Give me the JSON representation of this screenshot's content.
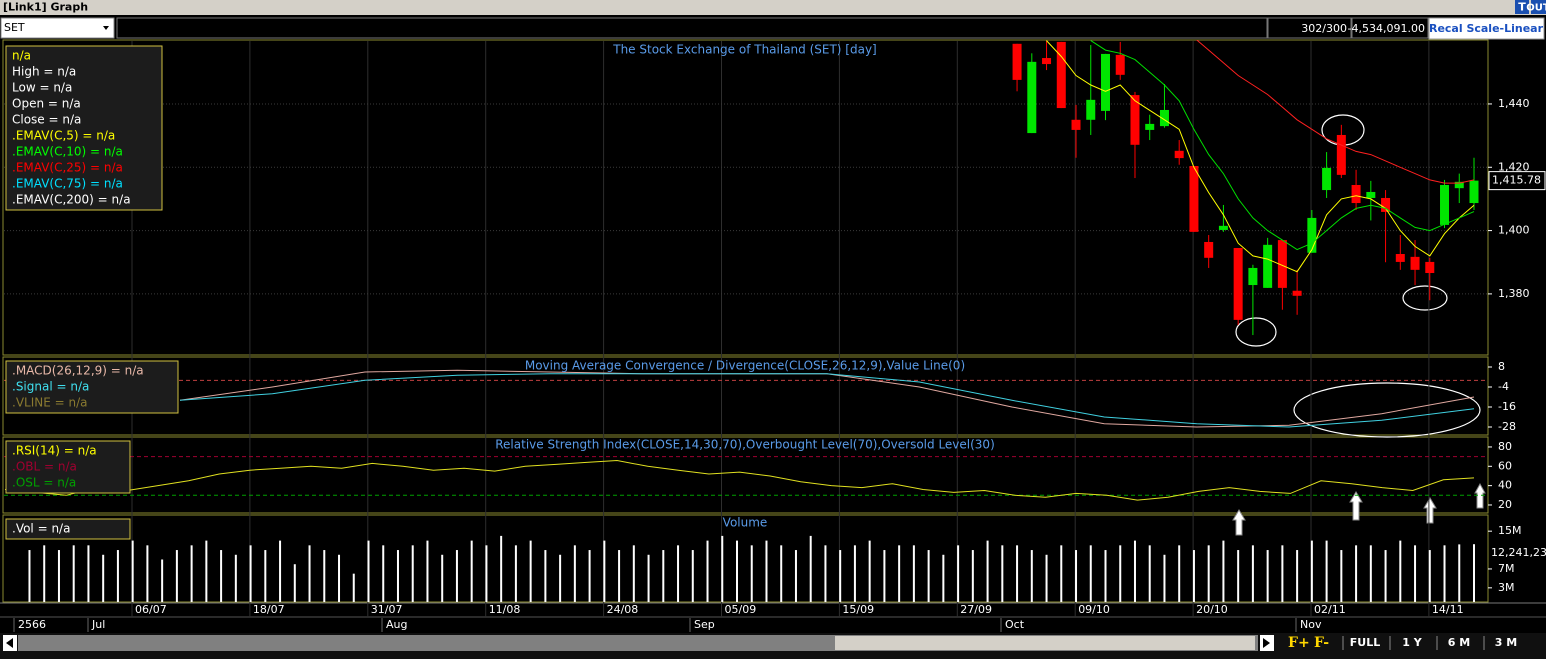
{
  "title_bar": {
    "title": "[Link1] Graph",
    "buttons": [
      "T",
      "OUT"
    ]
  },
  "toolbar": {
    "symbol": "SET",
    "count": "302/300",
    "value": "-4,534,091.00",
    "button": "Recal Scale-Linear"
  },
  "price_panel": {
    "title": "The Stock Exchange of Thailand (SET) [day]",
    "legend": [
      {
        "text": "n/a",
        "color": "#ffff00"
      },
      {
        "text": "High  = n/a",
        "color": "#ffffff"
      },
      {
        "text": "Low  = n/a",
        "color": "#ffffff"
      },
      {
        "text": "Open  = n/a",
        "color": "#ffffff"
      },
      {
        "text": "Close  = n/a",
        "color": "#ffffff"
      },
      {
        "text": ".EMAV(C,5)   = n/a",
        "color": "#ffff00"
      },
      {
        "text": ".EMAV(C,10)   = n/a",
        "color": "#00ff00"
      },
      {
        "text": ".EMAV(C,25)   = n/a",
        "color": "#ff0000"
      },
      {
        "text": ".EMAV(C,75)   = n/a",
        "color": "#00e0ff"
      },
      {
        "text": ".EMAV(C,200)   = n/a",
        "color": "#ffffff"
      }
    ],
    "ylim": [
      1360.7,
      1460.2
    ],
    "yticks": [
      {
        "value": 1440,
        "label": "1,440"
      },
      {
        "value": 1420,
        "label": "1,420"
      },
      {
        "value": 1400,
        "label": "1,400"
      },
      {
        "value": 1380,
        "label": "1,380"
      }
    ],
    "last": {
      "value": 1415.78,
      "label": "1,415.78"
    },
    "candles": {
      "up_color": "#00e600",
      "down_color": "#ff0000",
      "open": [
        1459,
        1430.8,
        1454.5,
        1459.6,
        1435,
        1435,
        1437.8,
        1455.5,
        1442.8,
        1431.8,
        1433,
        1425.2,
        1420.4,
        1396.4,
        1400.2,
        1394.5,
        1382.8,
        1381.9,
        1397,
        1381,
        1393,
        1412.8,
        1430.2,
        1414.4,
        1410.3,
        1410.3,
        1392.6,
        1391.7,
        1390.1,
        1401.8,
        1413.4,
        1408.7
      ],
      "high": [
        1459,
        1456,
        1460,
        1459.6,
        1439.7,
        1458.6,
        1455.8,
        1459.6,
        1443.8,
        1436.6,
        1446.3,
        1428.6,
        1420.4,
        1398.6,
        1408.1,
        1394.5,
        1389.2,
        1397.7,
        1397,
        1387.6,
        1406.5,
        1424.8,
        1433.4,
        1419.2,
        1415.7,
        1412.8,
        1398.6,
        1397,
        1391.4,
        1416,
        1418,
        1423
      ],
      "low": [
        1444,
        1430.8,
        1450.7,
        1438.7,
        1423,
        1430.2,
        1434.9,
        1447.6,
        1416.6,
        1428.6,
        1432.5,
        1420.8,
        1399.6,
        1388.2,
        1399.6,
        1370.2,
        1367,
        1381.9,
        1375,
        1373.4,
        1393,
        1410.3,
        1416.6,
        1406.5,
        1403.2,
        1390,
        1387.6,
        1382.8,
        1378,
        1400.8,
        1408.7,
        1406.5
      ],
      "close": [
        1447.6,
        1453.3,
        1452.6,
        1438.7,
        1431.8,
        1441.3,
        1455.8,
        1449.2,
        1427.1,
        1433.7,
        1438.1,
        1422.9,
        1399.6,
        1391.4,
        1401.5,
        1371.8,
        1388.2,
        1395.5,
        1381.9,
        1379.4,
        1404,
        1419.8,
        1417.6,
        1408.7,
        1412.2,
        1405.9,
        1390.1,
        1387.6,
        1386.6,
        1414.4,
        1415.4,
        1415.78
      ]
    },
    "series": [
      {
        "color": "#ffff00",
        "values": [
          null,
          null,
          1460,
          1455,
          1449,
          1446,
          1444,
          1446,
          1441,
          1438,
          1435,
          1432,
          1420,
          1412,
          1405,
          1396,
          1392,
          1391,
          1389,
          1387,
          1394,
          1405,
          1410,
          1411,
          1410,
          1407,
          1400,
          1395,
          1392,
          1399,
          1404,
          1408
        ]
      },
      {
        "color": "#00e000",
        "values": [
          null,
          null,
          null,
          null,
          null,
          1460,
          1457,
          1456,
          1454,
          1450,
          1446,
          1441,
          1432,
          1424,
          1418,
          1410,
          1404,
          1400,
          1397,
          1394,
          1396,
          1400,
          1404,
          1407,
          1408,
          1407,
          1404,
          1401,
          1400,
          1402,
          1404,
          1406
        ]
      },
      {
        "color": "#ff2020",
        "values": [
          null,
          null,
          null,
          null,
          null,
          null,
          null,
          null,
          null,
          null,
          null,
          null,
          1461,
          1457,
          1453,
          1449,
          1446,
          1443,
          1439,
          1435,
          1432,
          1429,
          1427,
          1425,
          1424,
          1422,
          1420,
          1418,
          1416,
          1415,
          1415,
          1416
        ]
      }
    ]
  },
  "macd_panel": {
    "title": "Moving Average Convergence / Divergence(CLOSE,26,12,9),Value Line(0)",
    "legend": [
      {
        "text": ".MACD(26,12,9)   = n/a",
        "color": "#e8b8a8"
      },
      {
        "text": ".Signal   = n/a",
        "color": "#40e0f0"
      },
      {
        "text": ".VLINE   = n/a",
        "color": "#8a7a30"
      }
    ],
    "ylim": [
      -32.8,
      14
    ],
    "yticks": [
      8,
      -4,
      -16,
      -28
    ],
    "value_line": {
      "value": 0,
      "color": "#c04040"
    },
    "series": [
      {
        "color": "#e0a8a0",
        "values": [
          -12,
          -4,
          5,
          6,
          5,
          4,
          4,
          4,
          -4,
          -16,
          -26,
          -28,
          -27,
          -20,
          -10
        ]
      },
      {
        "color": "#40d0e0",
        "values": [
          -12,
          -8,
          0,
          3,
          4,
          4,
          4,
          4,
          -1,
          -12,
          -22,
          -26,
          -28,
          -24,
          -17
        ]
      }
    ]
  },
  "rsi_panel": {
    "title": "Relative Strength Index(CLOSE,14,30,70),Overbought Level(70),Oversold Level(30)",
    "legend": [
      {
        "text": ".RSI(14)   = n/a",
        "color": "#ffff00"
      },
      {
        "text": ".OBL   = n/a",
        "color": "#a00030"
      },
      {
        "text": ".OSL   = n/a",
        "color": "#00a000"
      }
    ],
    "ylim": [
      11.7,
      90.3
    ],
    "yticks": [
      80,
      60,
      40,
      20
    ],
    "levels": [
      {
        "value": 70,
        "color": "#a00030"
      },
      {
        "value": 30,
        "color": "#00a000"
      }
    ],
    "color": "#e0e020",
    "values": [
      36,
      33,
      30,
      38,
      35,
      40,
      45,
      52,
      56,
      58,
      60,
      58,
      63,
      60,
      56,
      58,
      55,
      60,
      62,
      64,
      66,
      60,
      56,
      52,
      54,
      50,
      44,
      40,
      38,
      42,
      36,
      33,
      35,
      30,
      28,
      32,
      30,
      25,
      28,
      34,
      38,
      34,
      32,
      45,
      42,
      38,
      35,
      46,
      48
    ]
  },
  "volume_panel": {
    "title": "Volume",
    "legend": [
      {
        "text": ".Vol   = n/a",
        "color": "#ffffff"
      }
    ],
    "ylim": [
      0,
      18
    ],
    "yticks": [
      {
        "value": 15,
        "label": "15M"
      },
      {
        "value": 7,
        "label": "7M"
      },
      {
        "value": 3,
        "label": "3M"
      }
    ],
    "last_label": "12,241,23",
    "color": "#ffffff",
    "values": [
      11,
      12,
      11,
      12,
      12,
      10,
      11,
      13,
      12,
      9,
      11,
      12,
      13,
      11,
      10,
      12,
      11,
      13,
      8,
      12,
      11,
      10,
      6,
      13,
      12,
      11,
      12,
      13,
      10,
      11,
      13,
      12,
      14,
      12,
      13,
      11,
      10,
      12,
      11,
      13,
      11,
      12,
      10,
      11,
      12,
      11,
      13,
      14,
      13,
      12,
      13,
      12,
      11,
      14,
      12,
      11,
      12,
      13,
      11,
      12,
      12,
      11,
      10,
      12,
      11,
      13,
      12,
      12,
      11,
      10,
      12,
      11,
      12,
      11,
      12,
      13,
      12,
      10,
      12,
      11,
      12,
      13,
      11,
      12,
      11,
      12,
      11,
      13,
      13,
      11,
      12,
      12,
      11,
      13,
      12,
      11,
      12,
      12.2,
      12.24
    ]
  },
  "date_axis": {
    "dates": [
      "06/07",
      "18/07",
      "31/07",
      "11/08",
      "24/08",
      "05/09",
      "15/09",
      "27/09",
      "09/10",
      "20/10",
      "02/11",
      "14/11"
    ],
    "months": [
      "2566",
      "Jul",
      "Aug",
      "Sep",
      "Oct",
      "Nov"
    ]
  },
  "bottom_bar": {
    "f_buttons": [
      "F+",
      "F-"
    ],
    "ranges": [
      "FULL",
      "1 Y",
      "6 M",
      "3 M"
    ]
  }
}
